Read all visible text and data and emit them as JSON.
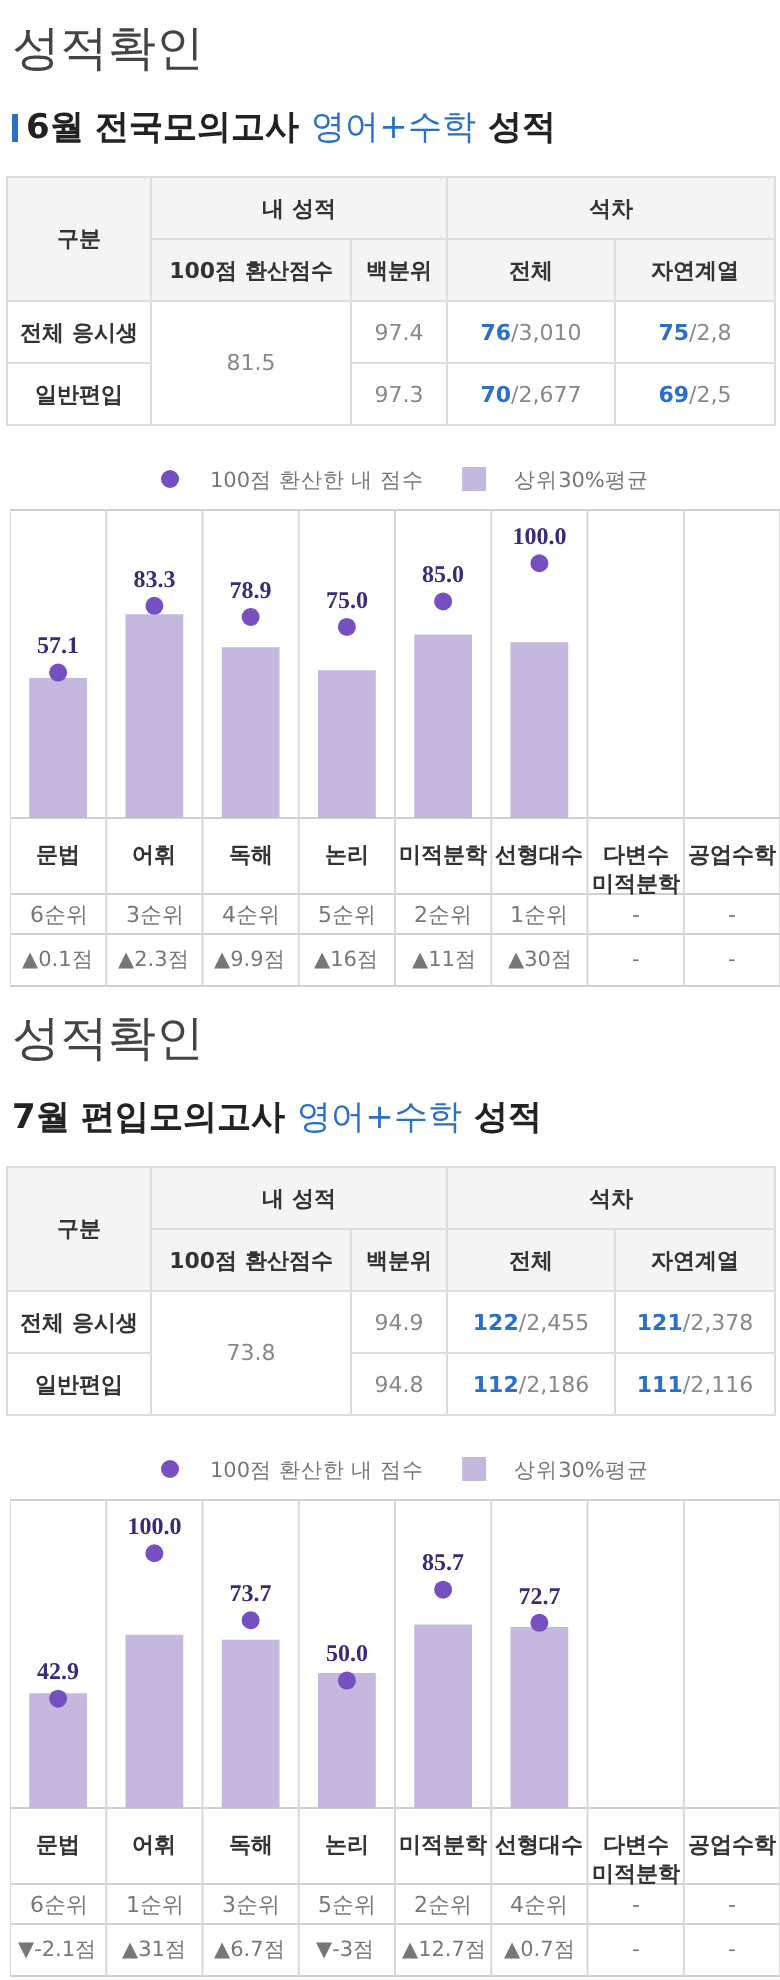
{
  "chart_data": [
    {
      "type": "other",
      "title": "성적확인",
      "subtitle": "6월 전국모의고사 영어+수학 성적",
      "annotations": [
        "구분",
        "내 성적",
        "석차",
        "100점 환산점수",
        "백분위",
        "전체",
        "자연계열",
        "전체 응시생",
        "81.5",
        "97.4",
        "76/3,010",
        "75/2,8",
        "일반편입",
        "97.3",
        "70/2,677",
        "69/2,5"
      ]
    },
    {
      "type": "bar",
      "categories": [
        "문법",
        "어휘",
        "독해",
        "논리",
        "미적분학",
        "선형대수",
        "다변수 미적분학",
        "공업수학"
      ],
      "grid": "x",
      "legend": "top",
      "marker": "circle",
      "series": [
        {
          "type": "bar",
          "name": "상위30%평균",
          "color": "#c4b8de",
          "values": [
            55,
            80,
            67,
            58,
            72,
            69,
            null,
            null
          ]
        },
        {
          "type": "scatter",
          "name": "100점 환산한 내 점수",
          "color": "#7650c0",
          "values": [
            57.1,
            83.3,
            78.9,
            75.0,
            85.0,
            100.0,
            null,
            null
          ],
          "value_labels": [
            "57.1",
            "83.3",
            "78.9",
            "75.0",
            "85.0",
            "100.0",
            null,
            null
          ]
        }
      ],
      "annotations": [
        "6순위\n▲0.1점",
        "3순위\n▲2.3점",
        "4순위\n▲9.9점",
        "5순위\n▲16점",
        "2순위\n▲11점",
        "1순위\n▲30점",
        "-\n-",
        "-\n-"
      ]
    },
    {
      "type": "other",
      "title": "성적확인",
      "subtitle": "7월 편입모의고사 영어+수학 성적",
      "annotations": [
        "구분",
        "내 성적",
        "석차",
        "100점 환산점수",
        "백분위",
        "전체",
        "자연계열",
        "전체 응시생",
        "73.8",
        "94.9",
        "122/2,455",
        "121/2,378",
        "일반편입",
        "94.8",
        "112/2,186",
        "111/2,116"
      ]
    },
    {
      "type": "bar",
      "categories": [
        "문법",
        "어휘",
        "독해",
        "논리",
        "미적분학",
        "선형대수",
        "다변수 미적분학",
        "공업수학"
      ],
      "grid": "x",
      "legend": "top",
      "marker": "circle",
      "series": [
        {
          "type": "bar",
          "name": "상위30%평균",
          "color": "#c4b8de",
          "values": [
            45,
            68,
            66,
            53,
            72,
            71,
            null,
            null
          ]
        },
        {
          "type": "scatter",
          "name": "100점 환산한 내 점수",
          "color": "#7650c0",
          "values": [
            42.9,
            100.0,
            73.7,
            50.0,
            85.7,
            72.7,
            null,
            null
          ],
          "value_labels": [
            "42.9",
            "100.0",
            "73.7",
            "50.0",
            "85.7",
            "72.7",
            null,
            null
          ]
        }
      ],
      "annotations": [
        "6순위\n▼-2.1점",
        "1순위\n▲31점",
        "3순위\n▲6.7점",
        "5순위\n▼-3점",
        "2순위\n▲12.7점",
        "4순위\n▲0.7점",
        "-\n-",
        "-\n-"
      ]
    }
  ]
}
